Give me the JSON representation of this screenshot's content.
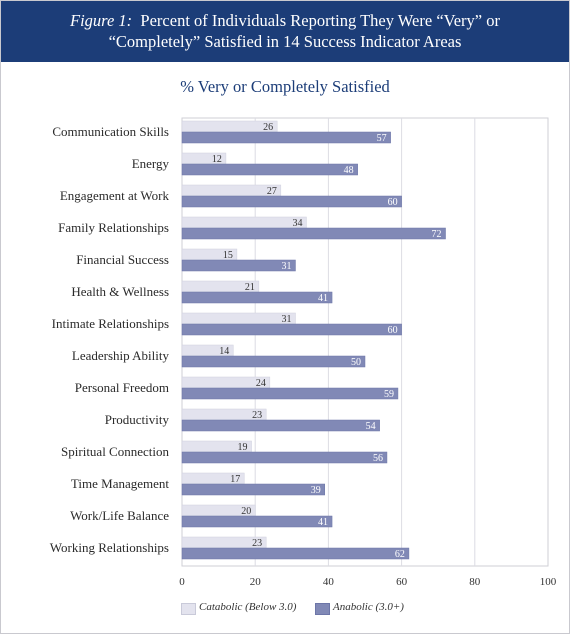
{
  "title": {
    "figure_label": "Figure 1:",
    "line1_text": "Percent of Individuals Reporting They Were “Very” or",
    "line2_text": "“Completely” Satisfied in 14 Success Indicator Areas"
  },
  "chart_data": {
    "type": "bar",
    "orientation": "horizontal",
    "title": "% Very or Completely Satisfied",
    "categories": [
      "Communication Skills",
      "Energy",
      "Engagement at Work",
      "Family Relationships",
      "Financial Success",
      "Health & Wellness",
      "Intimate Relationships",
      "Leadership Ability",
      "Personal Freedom",
      "Productivity",
      "Spiritual Connection",
      "Time Management",
      "Work/Life Balance",
      "Working Relationships"
    ],
    "series": [
      {
        "name": "Catabolic (Below 3.0)",
        "values": [
          26,
          12,
          27,
          34,
          15,
          21,
          31,
          14,
          24,
          23,
          19,
          17,
          20,
          23
        ],
        "color": "#e3e3ee"
      },
      {
        "name": "Anabolic (3.0+)",
        "values": [
          57,
          48,
          60,
          72,
          31,
          41,
          60,
          50,
          59,
          54,
          56,
          39,
          41,
          62
        ],
        "color": "#8189b6"
      }
    ],
    "xlim": [
      0,
      100
    ],
    "xticks": [
      0,
      20,
      40,
      60,
      80,
      100
    ],
    "grid": true,
    "legend_position": "bottom"
  }
}
